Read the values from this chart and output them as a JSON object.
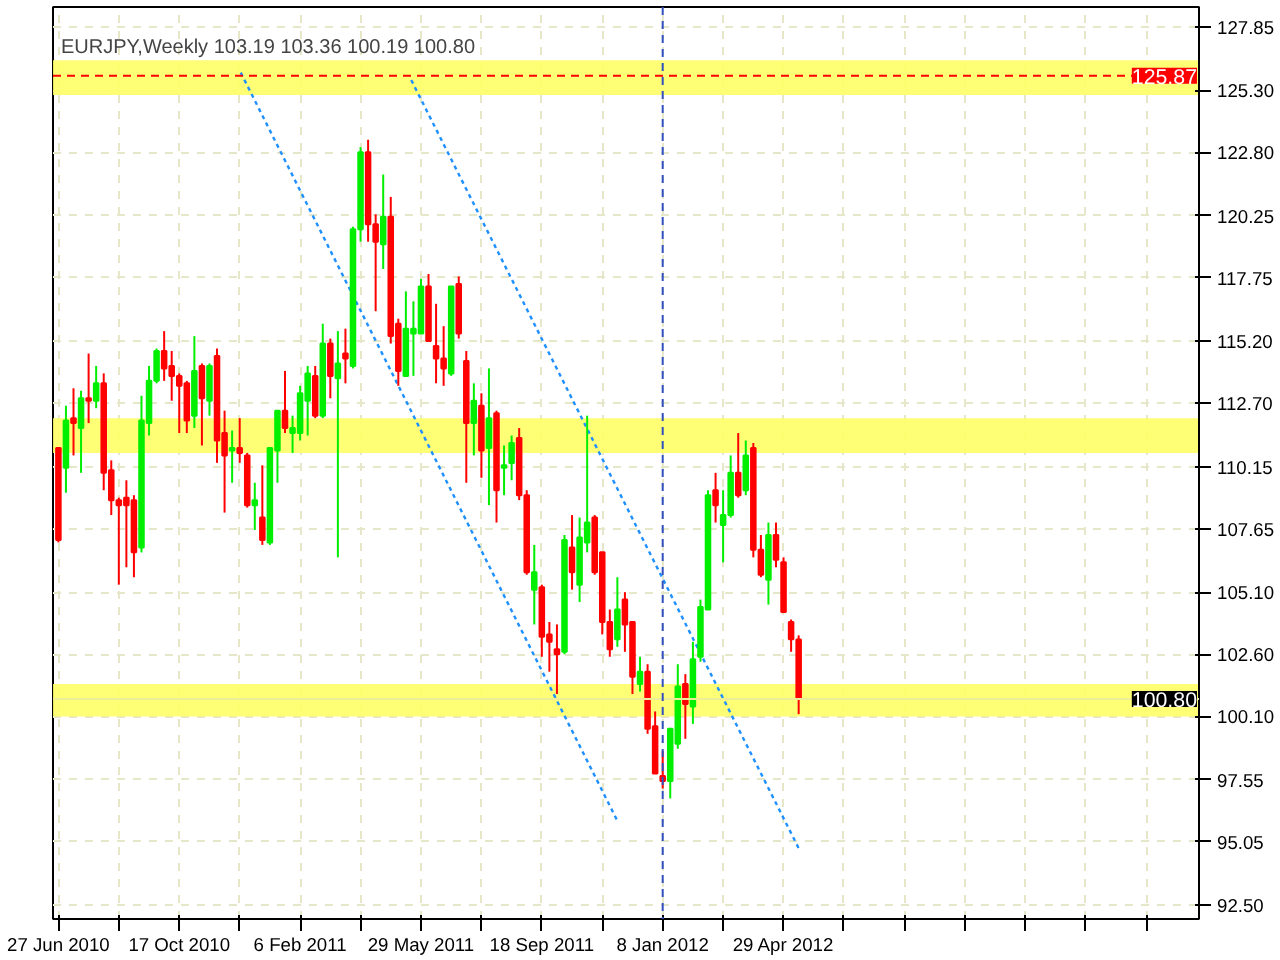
{
  "chart_data": {
    "type": "candlestick",
    "title": "EURJPY,Weekly  103.19 103.36 100.19 100.80",
    "x": [
      "2010-06-27",
      "2010-07-04",
      "2010-07-11",
      "2010-07-18",
      "2010-07-25",
      "2010-08-01",
      "2010-08-08",
      "2010-08-15",
      "2010-08-22",
      "2010-08-29",
      "2010-09-05",
      "2010-09-12",
      "2010-09-19",
      "2010-09-26",
      "2010-10-03",
      "2010-10-10",
      "2010-10-17",
      "2010-10-24",
      "2010-10-31",
      "2010-11-07",
      "2010-11-14",
      "2010-11-21",
      "2010-11-28",
      "2010-12-05",
      "2010-12-12",
      "2010-12-19",
      "2010-12-26",
      "2011-01-02",
      "2011-01-09",
      "2011-01-16",
      "2011-01-23",
      "2011-01-30",
      "2011-02-06",
      "2011-02-13",
      "2011-02-20",
      "2011-02-27",
      "2011-03-06",
      "2011-03-13",
      "2011-03-20",
      "2011-03-27",
      "2011-04-03",
      "2011-04-10",
      "2011-04-17",
      "2011-04-24",
      "2011-05-01",
      "2011-05-08",
      "2011-05-15",
      "2011-05-22",
      "2011-05-29",
      "2011-06-05",
      "2011-06-12",
      "2011-06-19",
      "2011-06-26",
      "2011-07-03",
      "2011-07-10",
      "2011-07-17",
      "2011-07-24",
      "2011-07-31",
      "2011-08-07",
      "2011-08-14",
      "2011-08-21",
      "2011-08-28",
      "2011-09-04",
      "2011-09-11",
      "2011-09-18",
      "2011-09-25",
      "2011-10-02",
      "2011-10-09",
      "2011-10-16",
      "2011-10-23",
      "2011-10-30",
      "2011-11-06",
      "2011-11-13",
      "2011-11-20",
      "2011-11-27",
      "2011-12-04",
      "2011-12-11",
      "2011-12-18",
      "2011-12-25",
      "2012-01-01",
      "2012-01-08",
      "2012-01-15",
      "2012-01-22",
      "2012-01-29",
      "2012-02-05",
      "2012-02-12",
      "2012-02-19",
      "2012-02-26",
      "2012-03-04",
      "2012-03-11",
      "2012-03-18",
      "2012-03-25",
      "2012-04-01",
      "2012-04-08",
      "2012-04-15",
      "2012-04-22",
      "2012-04-29",
      "2012-05-06",
      "2012-05-13"
    ],
    "ohlc": [
      [
        110.9,
        110.9,
        107.1,
        107.2
      ],
      [
        110.1,
        112.6,
        109.1,
        112.0
      ],
      [
        112.1,
        113.3,
        110.6,
        111.9
      ],
      [
        111.7,
        113.2,
        109.9,
        112.9
      ],
      [
        112.9,
        114.7,
        111.9,
        112.8
      ],
      [
        112.8,
        114.2,
        112.5,
        113.5
      ],
      [
        113.5,
        113.9,
        109.2,
        109.9
      ],
      [
        110.0,
        110.4,
        108.2,
        108.8
      ],
      [
        108.8,
        108.9,
        105.4,
        108.6
      ],
      [
        108.9,
        109.6,
        106.1,
        108.6
      ],
      [
        108.8,
        109.0,
        105.7,
        106.7
      ],
      [
        106.9,
        113.0,
        106.7,
        112.0
      ],
      [
        111.9,
        114.2,
        111.4,
        113.6
      ],
      [
        113.6,
        114.9,
        113.5,
        114.8
      ],
      [
        114.8,
        115.6,
        113.6,
        114.1
      ],
      [
        114.2,
        114.8,
        112.8,
        113.8
      ],
      [
        113.8,
        113.9,
        111.5,
        113.4
      ],
      [
        113.5,
        113.6,
        111.5,
        112.0
      ],
      [
        112.2,
        115.4,
        111.7,
        114.0
      ],
      [
        114.2,
        114.3,
        111.0,
        112.9
      ],
      [
        112.8,
        114.3,
        112.2,
        114.2
      ],
      [
        114.6,
        114.9,
        110.3,
        111.2
      ],
      [
        111.5,
        112.4,
        108.3,
        110.6
      ],
      [
        110.8,
        111.6,
        109.5,
        110.9
      ],
      [
        110.9,
        112.1,
        110.3,
        110.7
      ],
      [
        110.6,
        110.7,
        108.5,
        108.6
      ],
      [
        108.6,
        109.5,
        107.6,
        108.8
      ],
      [
        108.1,
        110.2,
        107.0,
        107.2
      ],
      [
        107.1,
        110.9,
        107.0,
        110.9
      ],
      [
        110.8,
        112.4,
        109.5,
        112.4
      ],
      [
        112.4,
        114.0,
        111.5,
        111.7
      ],
      [
        111.5,
        112.2,
        110.7,
        111.7
      ],
      [
        111.5,
        113.4,
        111.2,
        113.1
      ],
      [
        112.8,
        114.2,
        111.4,
        113.9
      ],
      [
        113.8,
        114.2,
        112.1,
        112.2
      ],
      [
        112.2,
        115.9,
        112.1,
        115.1
      ],
      [
        115.1,
        115.3,
        112.9,
        113.8
      ],
      [
        113.7,
        115.6,
        106.5,
        114.3
      ],
      [
        114.7,
        115.7,
        113.5,
        114.5
      ],
      [
        114.2,
        119.8,
        114.1,
        119.7
      ],
      [
        119.7,
        123.0,
        119.2,
        122.8
      ],
      [
        122.8,
        123.3,
        119.2,
        119.9
      ],
      [
        119.9,
        120.3,
        116.4,
        119.2
      ],
      [
        119.1,
        121.9,
        118.1,
        120.2
      ],
      [
        120.2,
        121.0,
        115.1,
        115.4
      ],
      [
        115.9,
        116.1,
        113.4,
        114.0
      ],
      [
        113.8,
        117.2,
        113.8,
        115.7
      ],
      [
        115.5,
        116.8,
        113.8,
        115.7
      ],
      [
        115.5,
        117.7,
        115.5,
        117.4
      ],
      [
        117.4,
        117.9,
        115.2,
        115.2
      ],
      [
        115.0,
        116.7,
        113.5,
        114.5
      ],
      [
        114.5,
        115.8,
        113.4,
        114.1
      ],
      [
        113.9,
        117.4,
        113.8,
        117.4
      ],
      [
        117.5,
        117.8,
        115.3,
        115.5
      ],
      [
        114.4,
        114.8,
        109.5,
        111.9
      ],
      [
        111.9,
        113.5,
        110.6,
        112.8
      ],
      [
        112.6,
        113.1,
        109.7,
        110.8
      ],
      [
        110.9,
        114.1,
        108.6,
        112.1
      ],
      [
        112.3,
        112.4,
        107.9,
        109.2
      ],
      [
        110.1,
        111.0,
        109.0,
        110.2
      ],
      [
        110.3,
        111.4,
        109.6,
        111.1
      ],
      [
        111.3,
        111.7,
        108.8,
        109.0
      ],
      [
        109.0,
        109.2,
        105.8,
        105.9
      ],
      [
        105.2,
        107.0,
        103.8,
        105.9
      ],
      [
        105.3,
        105.4,
        102.5,
        103.3
      ],
      [
        103.4,
        103.9,
        101.9,
        103.1
      ],
      [
        102.8,
        103.8,
        101.0,
        102.6
      ],
      [
        102.7,
        107.4,
        102.6,
        107.2
      ],
      [
        106.9,
        108.2,
        105.2,
        105.9
      ],
      [
        105.4,
        108.1,
        104.7,
        107.3
      ],
      [
        107.1,
        112.2,
        106.7,
        107.9
      ],
      [
        108.1,
        108.2,
        105.8,
        105.9
      ],
      [
        106.7,
        106.7,
        103.4,
        103.9
      ],
      [
        103.9,
        104.4,
        102.5,
        102.8
      ],
      [
        103.2,
        105.7,
        102.9,
        104.4
      ],
      [
        104.8,
        105.1,
        102.7,
        103.8
      ],
      [
        103.9,
        103.9,
        101.0,
        101.7
      ],
      [
        101.4,
        102.5,
        101.1,
        101.9
      ],
      [
        101.9,
        102.2,
        99.4,
        99.6
      ],
      [
        99.7,
        100.3,
        97.8,
        97.8
      ],
      [
        97.7,
        98.7,
        97.2,
        97.5
      ],
      [
        97.5,
        99.6,
        96.8,
        99.6
      ],
      [
        99.0,
        102.2,
        98.8,
        101.3
      ],
      [
        101.4,
        101.8,
        99.2,
        100.6
      ],
      [
        100.5,
        103.1,
        99.8,
        102.4
      ],
      [
        102.5,
        104.8,
        102.3,
        104.5
      ],
      [
        104.4,
        109.2,
        104.4,
        109.0
      ],
      [
        109.2,
        109.9,
        107.9,
        108.6
      ],
      [
        107.8,
        109.2,
        106.3,
        108.2
      ],
      [
        108.2,
        110.6,
        108.1,
        109.9
      ],
      [
        109.9,
        111.5,
        108.9,
        109.0
      ],
      [
        109.2,
        111.2,
        109.0,
        110.6
      ],
      [
        110.9,
        111.1,
        106.5,
        106.8
      ],
      [
        106.8,
        107.4,
        105.7,
        105.8
      ],
      [
        105.6,
        107.9,
        104.6,
        107.4
      ],
      [
        107.4,
        107.9,
        106.1,
        106.4
      ],
      [
        106.3,
        106.5,
        104.3,
        104.3
      ],
      [
        103.9,
        104.0,
        102.7,
        103.2
      ],
      [
        103.19,
        103.36,
        100.19,
        100.8
      ]
    ],
    "colors": [
      "#ff0000",
      "#00ee00",
      "#ff0000",
      "#00ee00",
      "#ff0000",
      "#00ee00",
      "#ff0000",
      "#ff0000",
      "#ff0000",
      "#ff0000",
      "#ff0000",
      "#00ee00",
      "#00ee00",
      "#00ee00",
      "#ff0000",
      "#ff0000",
      "#ff0000",
      "#ff0000",
      "#00ee00",
      "#ff0000",
      "#00ee00",
      "#ff0000",
      "#ff0000",
      "#00ee00",
      "#ff0000",
      "#ff0000",
      "#00ee00",
      "#ff0000",
      "#00ee00",
      "#00ee00",
      "#ff0000",
      "#00ee00",
      "#00ee00",
      "#00ee00",
      "#ff0000",
      "#00ee00",
      "#ff0000",
      "#00ee00",
      "#ff0000",
      "#00ee00",
      "#00ee00",
      "#ff0000",
      "#ff0000",
      "#00ee00",
      "#ff0000",
      "#ff0000",
      "#00ee00",
      "#00ee00",
      "#00ee00",
      "#ff0000",
      "#ff0000",
      "#ff0000",
      "#00ee00",
      "#ff0000",
      "#ff0000",
      "#00ee00",
      "#ff0000",
      "#00ee00",
      "#ff0000",
      "#00ee00",
      "#00ee00",
      "#ff0000",
      "#ff0000",
      "#00ee00",
      "#ff0000",
      "#ff0000",
      "#ff0000",
      "#00ee00",
      "#ff0000",
      "#00ee00",
      "#00ee00",
      "#ff0000",
      "#ff0000",
      "#ff0000",
      "#00ee00",
      "#ff0000",
      "#ff0000",
      "#00ee00",
      "#ff0000",
      "#ff0000",
      "#ff0000",
      "#00ee00",
      "#00ee00",
      "#ff0000",
      "#00ee00",
      "#00ee00",
      "#00ee00",
      "#ff0000",
      "#00ee00",
      "#00ee00",
      "#ff0000",
      "#00ee00",
      "#ff0000",
      "#ff0000",
      "#00ee00",
      "#ff0000",
      "#ff0000",
      "#ff0000",
      "#ff0000"
    ],
    "series": [
      {
        "type": "line",
        "x": [
          "2010-12-13",
          "2011-11-27"
        ],
        "values": [
          126.0,
          95.9
        ],
        "color": "#1e90ff",
        "line_style": "dotted"
      },
      {
        "type": "line",
        "x": [
          "2011-05-20",
          "2012-05-13"
        ],
        "values": [
          125.7,
          94.8
        ],
        "color": "#1e90ff",
        "line_style": "dotted"
      }
    ],
    "ref_lines": [
      {
        "axis": "y",
        "value": 125.87,
        "label": "125.87",
        "color": "#ff0000",
        "line_style": "dashed"
      },
      {
        "axis": "y",
        "value": 100.8,
        "label": "100.80",
        "color": "#eeee99",
        "line_style": "solid"
      },
      {
        "axis": "x",
        "value": "2012-01-08",
        "color": "#3050c0",
        "line_style": "dashed"
      }
    ],
    "bands": [
      {
        "axis": "y",
        "from": 125.1,
        "to": 126.5,
        "color": "#ffff66"
      },
      {
        "axis": "y",
        "from": 110.7,
        "to": 112.1,
        "color": "#ffff66"
      },
      {
        "axis": "y",
        "from": 100.1,
        "to": 101.4,
        "color": "#ffff66"
      }
    ],
    "xlim": [
      "2010-06-22",
      "2013-05-19"
    ],
    "xticks": [
      {
        "value": "2010-06-27",
        "label": "27 Jun 2010"
      },
      {
        "value": "2010-08-22",
        "label": null
      },
      {
        "value": "2010-10-17",
        "label": "17 Oct 2010"
      },
      {
        "value": "2010-12-12",
        "label": null
      },
      {
        "value": "2011-02-06",
        "label": "6 Feb 2011"
      },
      {
        "value": "2011-04-03",
        "label": null
      },
      {
        "value": "2011-05-29",
        "label": "29 May 2011"
      },
      {
        "value": "2011-07-24",
        "label": null
      },
      {
        "value": "2011-09-18",
        "label": "18 Sep 2011"
      },
      {
        "value": "2011-11-13",
        "label": null
      },
      {
        "value": "2012-01-08",
        "label": "8 Jan 2012"
      },
      {
        "value": "2012-03-04",
        "label": null
      },
      {
        "value": "2012-04-29",
        "label": "29 Apr 2012"
      },
      {
        "value": "2012-06-24",
        "label": null
      },
      {
        "value": "2012-08-19",
        "label": null
      },
      {
        "value": "2012-10-14",
        "label": null
      },
      {
        "value": "2012-12-09",
        "label": null
      },
      {
        "value": "2013-02-03",
        "label": null
      },
      {
        "value": "2013-03-31",
        "label": null
      }
    ],
    "ylim": [
      91.95,
      128.64
    ],
    "yticks": [
      127.85,
      {
        "value": 125.3,
        "label": "125.30"
      },
      {
        "value": 122.8,
        "label": "122.80"
      },
      120.25,
      117.75,
      {
        "value": 115.2,
        "label": "115.20"
      },
      {
        "value": 112.7,
        "label": "112.70"
      },
      110.15,
      107.65,
      {
        "value": 105.1,
        "label": "105.10"
      },
      {
        "value": 102.6,
        "label": "102.60"
      },
      {
        "value": 100.1,
        "label": "100.10"
      },
      97.55,
      95.05,
      {
        "value": 92.5,
        "label": "92.50"
      }
    ],
    "grid": true
  }
}
